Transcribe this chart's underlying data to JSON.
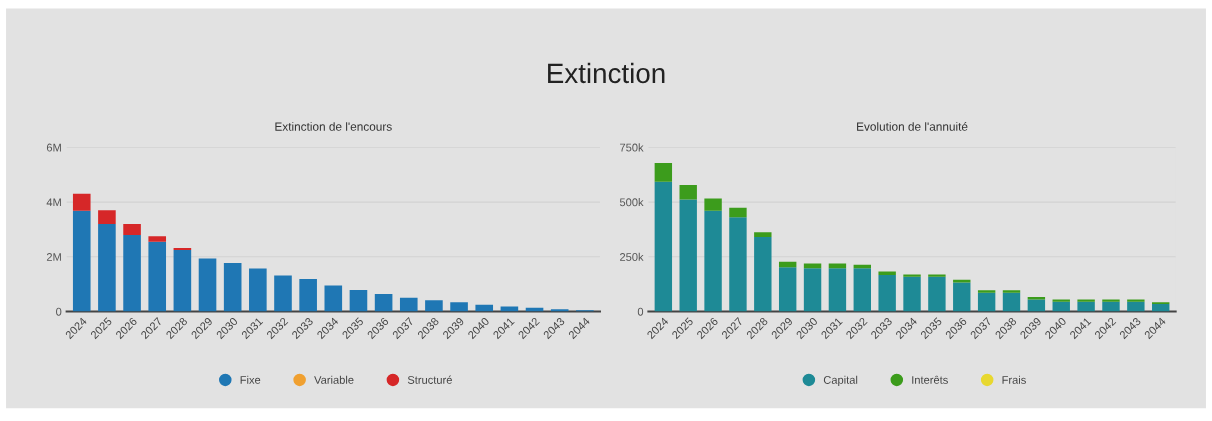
{
  "chart_data": [
    {
      "type": "bar",
      "stacked": true,
      "title": "Extinction de l'encours",
      "annotations": [
        "Extinction"
      ],
      "categories": [
        "2024",
        "2025",
        "2026",
        "2027",
        "2028",
        "2029",
        "2030",
        "2031",
        "2032",
        "2033",
        "2034",
        "2035",
        "2036",
        "2037",
        "2038",
        "2039",
        "2040",
        "2041",
        "2042",
        "2043",
        "2044"
      ],
      "series": [
        {
          "name": "Fixe",
          "color": "#1f77b4",
          "values": [
            3.68,
            3.2,
            2.8,
            2.55,
            2.25,
            1.94,
            1.77,
            1.57,
            1.32,
            1.19,
            0.95,
            0.79,
            0.64,
            0.5,
            0.41,
            0.34,
            0.25,
            0.18,
            0.14,
            0.08,
            0.05
          ]
        },
        {
          "name": "Variable",
          "color": "#f0a030",
          "values": [
            0,
            0,
            0,
            0,
            0,
            0,
            0,
            0,
            0,
            0,
            0,
            0,
            0,
            0,
            0,
            0,
            0,
            0,
            0,
            0,
            0
          ]
        },
        {
          "name": "Structuré",
          "color": "#d62728",
          "values": [
            0.62,
            0.5,
            0.4,
            0.2,
            0.07,
            0,
            0,
            0,
            0,
            0,
            0,
            0,
            0,
            0,
            0,
            0,
            0,
            0,
            0,
            0,
            0
          ]
        }
      ],
      "ylim": [
        0,
        6
      ],
      "yticks": [
        {
          "value": 0,
          "label": "0"
        },
        {
          "value": 2,
          "label": "2M"
        },
        {
          "value": 4,
          "label": "4M"
        },
        {
          "value": 6,
          "label": "6M"
        }
      ],
      "grid": "y",
      "legend": "bottom"
    },
    {
      "type": "bar",
      "stacked": true,
      "title": "Evolution de l'annuité",
      "categories": [
        "2024",
        "2025",
        "2026",
        "2027",
        "2028",
        "2029",
        "2030",
        "2031",
        "2032",
        "2033",
        "2034",
        "2035",
        "2036",
        "2037",
        "2038",
        "2039",
        "2040",
        "2041",
        "2042",
        "2043",
        "2044"
      ],
      "series": [
        {
          "name": "Capital",
          "color": "#1e8a96",
          "values": [
            593,
            512,
            460,
            431,
            340,
            202,
            198,
            198,
            198,
            167,
            159,
            159,
            133,
            86,
            86,
            55,
            45,
            45,
            45,
            45,
            34
          ]
        },
        {
          "name": "Interêts",
          "color": "#3c9c1c",
          "values": [
            86,
            66,
            56,
            43,
            22,
            26,
            21,
            21,
            16,
            16,
            10,
            10,
            12,
            11,
            11,
            11,
            10,
            10,
            10,
            10,
            9
          ]
        },
        {
          "name": "Frais",
          "color": "#e8d830",
          "values": [
            0,
            0,
            0,
            0,
            0,
            0,
            0,
            0,
            0,
            0,
            0,
            0,
            0,
            0,
            0,
            0,
            0,
            0,
            0,
            0,
            0
          ]
        }
      ],
      "ylim": [
        0,
        750
      ],
      "yticks": [
        {
          "value": 0,
          "label": "0"
        },
        {
          "value": 250,
          "label": "250k"
        },
        {
          "value": 500,
          "label": "500k"
        },
        {
          "value": 750,
          "label": "750k"
        }
      ],
      "grid": "y",
      "legend": "bottom"
    }
  ]
}
